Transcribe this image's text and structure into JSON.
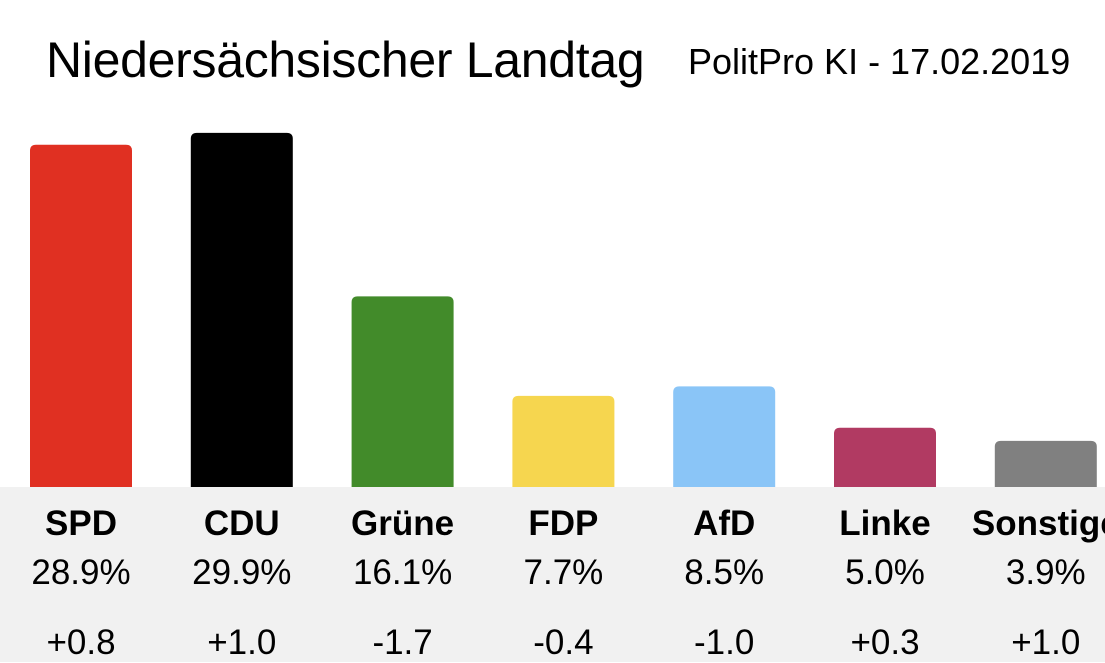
{
  "chart_data": {
    "type": "bar",
    "title": "Niedersächsischer Landtag",
    "subtitle": "PolitPro KI - 17.02.2019",
    "categories": [
      "SPD",
      "CDU",
      "Grüne",
      "FDP",
      "AfD",
      "Linke",
      "Sonstige"
    ],
    "values": [
      28.9,
      29.9,
      16.1,
      7.7,
      8.5,
      5.0,
      3.9
    ],
    "value_labels": [
      "28.9%",
      "29.9%",
      "16.1%",
      "7.7%",
      "8.5%",
      "5.0%",
      "3.9%"
    ],
    "changes": [
      "+0.8",
      "+1.0",
      "-1.7",
      "-0.4",
      "-1.0",
      "+0.3",
      "+1.0"
    ],
    "colors": [
      "#e03022",
      "#000000",
      "#428b2a",
      "#f6d64f",
      "#8ac5f7",
      "#b13a62",
      "#808080"
    ],
    "ylim": [
      0,
      30.4
    ],
    "grid": false,
    "legend": "none"
  }
}
